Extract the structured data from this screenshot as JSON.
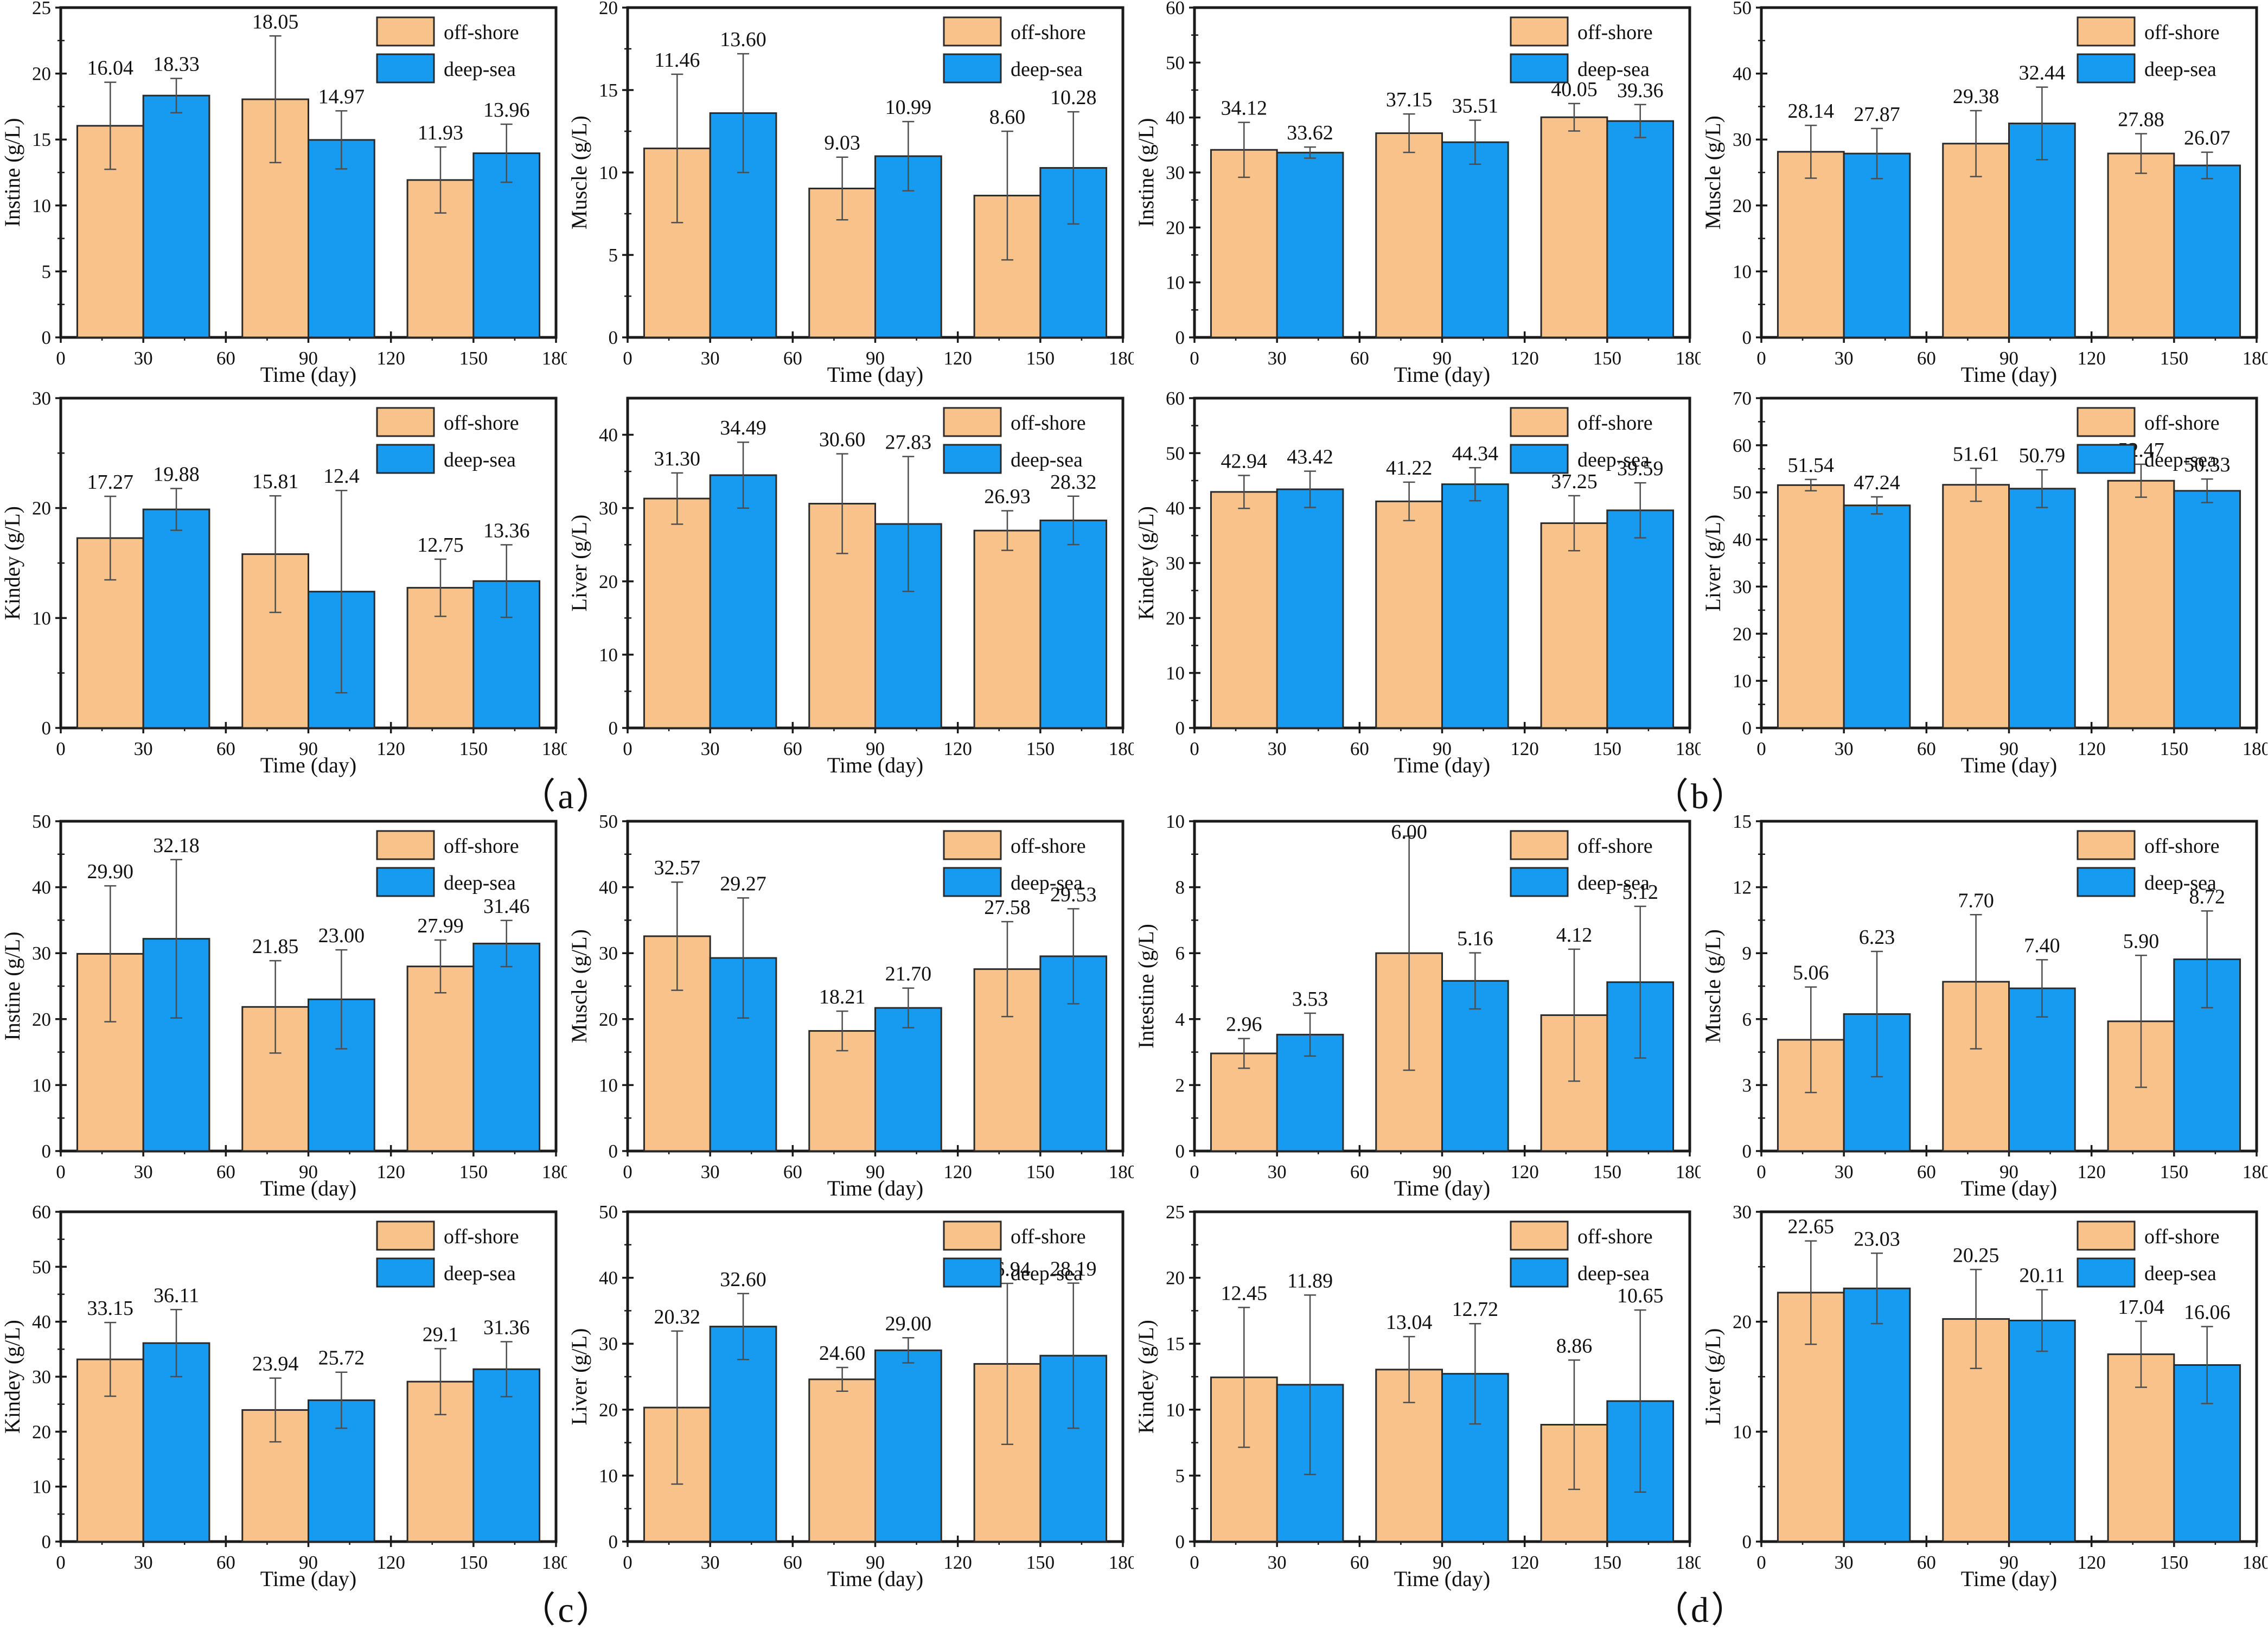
{
  "colors": {
    "offshore_fill": "#F8C38A",
    "deepsea_fill": "#179BF0",
    "bar_edge": "#2a2a2a",
    "error_bar": "#4d4d4d",
    "axis": "#1a1a1a",
    "background": "#ffffff"
  },
  "legend": {
    "offshore": "off-shore",
    "deepsea": "deep-sea"
  },
  "panels": [
    {
      "id": "a",
      "caption": "（a）"
    },
    {
      "id": "b",
      "caption": "（b）"
    },
    {
      "id": "c",
      "caption": "（c）"
    },
    {
      "id": "d",
      "caption": "（d）"
    }
  ],
  "chart_data": [
    {
      "panel": "a",
      "type": "bar",
      "xlabel": "Time (day)",
      "ylabel": "Instine (g/L)",
      "x": [
        30,
        90,
        150
      ],
      "x_ticks": [
        0,
        30,
        60,
        90,
        120,
        150,
        180
      ],
      "ylim": [
        0,
        25
      ],
      "ystep": 5,
      "legend_position": "top-right",
      "grid": false,
      "series": [
        {
          "name": "off-shore",
          "values": [
            16.04,
            18.05,
            11.93
          ],
          "labels": [
            "16.04",
            "18.05",
            "11.93"
          ],
          "errors": [
            3.3,
            4.8,
            2.5
          ]
        },
        {
          "name": "deep-sea",
          "values": [
            18.33,
            14.97,
            13.96
          ],
          "labels": [
            "18.33",
            "14.97",
            "13.96"
          ],
          "errors": [
            1.3,
            2.2,
            2.2
          ]
        }
      ]
    },
    {
      "panel": "a",
      "type": "bar",
      "xlabel": "Time (day)",
      "ylabel": "Muscle (g/L)",
      "x": [
        30,
        90,
        150
      ],
      "x_ticks": [
        0,
        30,
        60,
        90,
        120,
        150,
        180
      ],
      "ylim": [
        0,
        20
      ],
      "ystep": 5,
      "legend_position": "top-right",
      "grid": false,
      "series": [
        {
          "name": "off-shore",
          "values": [
            11.46,
            9.03,
            8.6
          ],
          "labels": [
            "11.46",
            "9.03",
            "8.60"
          ],
          "errors": [
            4.5,
            1.9,
            3.9
          ]
        },
        {
          "name": "deep-sea",
          "values": [
            13.6,
            10.99,
            10.28
          ],
          "labels": [
            "13.60",
            "10.99",
            "10.28"
          ],
          "errors": [
            3.6,
            2.1,
            3.4
          ]
        }
      ]
    },
    {
      "panel": "a",
      "type": "bar",
      "xlabel": "Time (day)",
      "ylabel": "Kindey (g/L)",
      "x": [
        30,
        90,
        150
      ],
      "x_ticks": [
        0,
        30,
        60,
        90,
        120,
        150,
        180
      ],
      "ylim": [
        0,
        30
      ],
      "ystep": 10,
      "legend_position": "top-right",
      "grid": false,
      "series": [
        {
          "name": "off-shore",
          "values": [
            17.27,
            15.81,
            12.75
          ],
          "labels": [
            "17.27",
            "15.81",
            "12.75"
          ],
          "errors": [
            3.8,
            5.3,
            2.6
          ]
        },
        {
          "name": "deep-sea",
          "values": [
            19.88,
            12.4,
            13.36
          ],
          "labels": [
            "19.88",
            "12.4",
            "13.36"
          ],
          "errors": [
            1.9,
            9.2,
            3.3
          ]
        }
      ]
    },
    {
      "panel": "a",
      "type": "bar",
      "xlabel": "Time (day)",
      "ylabel": "Liver (g/L)",
      "x": [
        30,
        90,
        150
      ],
      "x_ticks": [
        0,
        30,
        60,
        90,
        120,
        150,
        180
      ],
      "ylim": [
        0,
        45
      ],
      "ystep": 10,
      "legend_position": "top-right",
      "grid": false,
      "series": [
        {
          "name": "off-shore",
          "values": [
            31.3,
            30.6,
            26.93
          ],
          "labels": [
            "31.30",
            "30.60",
            "26.93"
          ],
          "errors": [
            3.5,
            6.8,
            2.7
          ]
        },
        {
          "name": "deep-sea",
          "values": [
            34.49,
            27.83,
            28.32
          ],
          "labels": [
            "34.49",
            "27.83",
            "28.32"
          ],
          "errors": [
            4.5,
            9.2,
            3.3
          ]
        }
      ]
    },
    {
      "panel": "b",
      "type": "bar",
      "xlabel": "Time (day)",
      "ylabel": "Instine (g/L)",
      "x": [
        30,
        90,
        150
      ],
      "x_ticks": [
        0,
        30,
        60,
        90,
        120,
        150,
        180
      ],
      "ylim": [
        0,
        60
      ],
      "ystep": 10,
      "legend_position": "top-right",
      "grid": false,
      "series": [
        {
          "name": "off-shore",
          "values": [
            34.12,
            37.15,
            40.05
          ],
          "labels": [
            "34.12",
            "37.15",
            "40.05"
          ],
          "errors": [
            5.0,
            3.5,
            2.5
          ]
        },
        {
          "name": "deep-sea",
          "values": [
            33.62,
            35.51,
            39.36
          ],
          "labels": [
            "33.62",
            "35.51",
            "39.36"
          ],
          "errors": [
            1.0,
            4.0,
            3.0
          ]
        }
      ]
    },
    {
      "panel": "b",
      "type": "bar",
      "xlabel": "Time (day)",
      "ylabel": "Muscle (g/L)",
      "x": [
        30,
        90,
        150
      ],
      "x_ticks": [
        0,
        30,
        60,
        90,
        120,
        150,
        180
      ],
      "ylim": [
        0,
        50
      ],
      "ystep": 10,
      "legend_position": "top-right",
      "grid": false,
      "series": [
        {
          "name": "off-shore",
          "values": [
            28.14,
            29.38,
            27.88
          ],
          "labels": [
            "28.14",
            "29.38",
            "27.88"
          ],
          "errors": [
            4.0,
            5.0,
            3.0
          ]
        },
        {
          "name": "deep-sea",
          "values": [
            27.87,
            32.44,
            26.07
          ],
          "labels": [
            "27.87",
            "32.44",
            "26.07"
          ],
          "errors": [
            3.8,
            5.5,
            2.0
          ]
        }
      ]
    },
    {
      "panel": "b",
      "type": "bar",
      "xlabel": "Time (day)",
      "ylabel": "Kindey (g/L)",
      "x": [
        30,
        90,
        150
      ],
      "x_ticks": [
        0,
        30,
        60,
        90,
        120,
        150,
        180
      ],
      "ylim": [
        0,
        60
      ],
      "ystep": 10,
      "legend_position": "top-right",
      "grid": false,
      "series": [
        {
          "name": "off-shore",
          "values": [
            42.94,
            41.22,
            37.25
          ],
          "labels": [
            "42.94",
            "41.22",
            "37.25"
          ],
          "errors": [
            3.0,
            3.5,
            5.0
          ]
        },
        {
          "name": "deep-sea",
          "values": [
            43.42,
            44.34,
            39.59
          ],
          "labels": [
            "43.42",
            "44.34",
            "39.59"
          ],
          "errors": [
            3.3,
            3.0,
            5.0
          ]
        }
      ]
    },
    {
      "panel": "b",
      "type": "bar",
      "xlabel": "Time (day)",
      "ylabel": "Liver (g/L)",
      "x": [
        30,
        90,
        150
      ],
      "x_ticks": [
        0,
        30,
        60,
        90,
        120,
        150,
        180
      ],
      "ylim": [
        0,
        70
      ],
      "ystep": 10,
      "legend_position": "top-right",
      "grid": false,
      "series": [
        {
          "name": "off-shore",
          "values": [
            51.54,
            51.61,
            52.47
          ],
          "labels": [
            "51.54",
            "51.61",
            "52.47"
          ],
          "errors": [
            1.2,
            3.5,
            3.5
          ]
        },
        {
          "name": "deep-sea",
          "values": [
            47.24,
            50.79,
            50.33
          ],
          "labels": [
            "47.24",
            "50.79",
            "50.33"
          ],
          "errors": [
            1.8,
            4.0,
            2.5
          ]
        }
      ]
    },
    {
      "panel": "c",
      "type": "bar",
      "xlabel": "Time (day)",
      "ylabel": "Instine (g/L)",
      "x": [
        30,
        90,
        150
      ],
      "x_ticks": [
        0,
        30,
        60,
        90,
        120,
        150,
        180
      ],
      "ylim": [
        0,
        50
      ],
      "ystep": 10,
      "legend_position": "top-right",
      "grid": false,
      "series": [
        {
          "name": "off-shore",
          "values": [
            29.9,
            21.85,
            27.99
          ],
          "labels": [
            "29.90",
            "21.85",
            "27.99"
          ],
          "errors": [
            10.3,
            7.0,
            4.0
          ]
        },
        {
          "name": "deep-sea",
          "values": [
            32.18,
            23.0,
            31.46
          ],
          "labels": [
            "32.18",
            "23.00",
            "31.46"
          ],
          "errors": [
            12.0,
            7.5,
            3.5
          ]
        }
      ]
    },
    {
      "panel": "c",
      "type": "bar",
      "xlabel": "Time (day)",
      "ylabel": "Muscle (g/L)",
      "x": [
        30,
        90,
        150
      ],
      "x_ticks": [
        0,
        30,
        60,
        90,
        120,
        150,
        180
      ],
      "ylim": [
        0,
        50
      ],
      "ystep": 10,
      "legend_position": "top-right",
      "grid": false,
      "series": [
        {
          "name": "off-shore",
          "values": [
            32.57,
            18.21,
            27.58
          ],
          "labels": [
            "32.57",
            "18.21",
            "27.58"
          ],
          "errors": [
            8.2,
            3.0,
            7.2
          ]
        },
        {
          "name": "deep-sea",
          "values": [
            29.27,
            21.7,
            29.53
          ],
          "labels": [
            "29.27",
            "21.70",
            "29.53"
          ],
          "errors": [
            9.1,
            3.0,
            7.2
          ]
        }
      ]
    },
    {
      "panel": "c",
      "type": "bar",
      "xlabel": "Time (day)",
      "ylabel": "Kindey (g/L)",
      "x": [
        30,
        90,
        150
      ],
      "x_ticks": [
        0,
        30,
        60,
        90,
        120,
        150,
        180
      ],
      "ylim": [
        0,
        60
      ],
      "ystep": 10,
      "legend_position": "top-right",
      "grid": false,
      "series": [
        {
          "name": "off-shore",
          "values": [
            33.15,
            23.94,
            29.1
          ],
          "labels": [
            "33.15",
            "23.94",
            "29.1"
          ],
          "errors": [
            6.7,
            5.8,
            6.0
          ]
        },
        {
          "name": "deep-sea",
          "values": [
            36.11,
            25.72,
            31.36
          ],
          "labels": [
            "36.11",
            "25.72",
            "31.36"
          ],
          "errors": [
            6.1,
            5.1,
            5.0
          ]
        }
      ]
    },
    {
      "panel": "c",
      "type": "bar",
      "xlabel": "Time (day)",
      "ylabel": "Liver (g/L)",
      "x": [
        30,
        90,
        150
      ],
      "x_ticks": [
        0,
        30,
        60,
        90,
        120,
        150,
        180
      ],
      "ylim": [
        0,
        50
      ],
      "ystep": 10,
      "legend_position": "top-right",
      "grid": false,
      "series": [
        {
          "name": "off-shore",
          "values": [
            20.32,
            24.6,
            26.94
          ],
          "labels": [
            "20.32",
            "24.60",
            "26.94"
          ],
          "errors": [
            11.6,
            1.8,
            12.2
          ]
        },
        {
          "name": "deep-sea",
          "values": [
            32.6,
            29.0,
            28.19
          ],
          "labels": [
            "32.60",
            "29.00",
            "28.19"
          ],
          "errors": [
            5.0,
            1.9,
            11.0
          ]
        }
      ]
    },
    {
      "panel": "d",
      "type": "bar",
      "xlabel": "Time (day)",
      "ylabel": "Intestine (g/L)",
      "x": [
        30,
        90,
        150
      ],
      "x_ticks": [
        0,
        30,
        60,
        90,
        120,
        150,
        180
      ],
      "ylim": [
        0,
        10
      ],
      "ystep": 2,
      "legend_position": "top-right",
      "grid": false,
      "series": [
        {
          "name": "off-shore",
          "values": [
            2.96,
            6.0,
            4.12
          ],
          "labels": [
            "2.96",
            "6.00",
            "4.12"
          ],
          "errors": [
            0.45,
            3.55,
            2.0
          ]
        },
        {
          "name": "deep-sea",
          "values": [
            3.53,
            5.16,
            5.12
          ],
          "labels": [
            "3.53",
            "5.16",
            "5.12"
          ],
          "errors": [
            0.65,
            0.85,
            2.3
          ]
        }
      ]
    },
    {
      "panel": "d",
      "type": "bar",
      "xlabel": "Time (day)",
      "ylabel": "Muscle (g/L)",
      "x": [
        30,
        90,
        150
      ],
      "x_ticks": [
        0,
        30,
        60,
        90,
        120,
        150,
        180
      ],
      "ylim": [
        0,
        15
      ],
      "ystep": 3,
      "legend_position": "top-right",
      "grid": false,
      "series": [
        {
          "name": "off-shore",
          "values": [
            5.06,
            7.7,
            5.9
          ],
          "labels": [
            "5.06",
            "7.70",
            "5.90"
          ],
          "errors": [
            2.4,
            3.05,
            3.0
          ]
        },
        {
          "name": "deep-sea",
          "values": [
            6.23,
            7.4,
            8.72
          ],
          "labels": [
            "6.23",
            "7.40",
            "8.72"
          ],
          "errors": [
            2.85,
            1.3,
            2.2
          ]
        }
      ]
    },
    {
      "panel": "d",
      "type": "bar",
      "xlabel": "Time (day)",
      "ylabel": "Kindey (g/L)",
      "x": [
        30,
        90,
        150
      ],
      "x_ticks": [
        0,
        30,
        60,
        90,
        120,
        150,
        180
      ],
      "ylim": [
        0,
        25
      ],
      "ystep": 5,
      "legend_position": "top-right",
      "grid": false,
      "series": [
        {
          "name": "off-shore",
          "values": [
            12.45,
            13.04,
            8.86
          ],
          "labels": [
            "12.45",
            "13.04",
            "8.86"
          ],
          "errors": [
            5.3,
            2.5,
            4.9
          ]
        },
        {
          "name": "deep-sea",
          "values": [
            11.89,
            12.72,
            10.65
          ],
          "labels": [
            "11.89",
            "12.72",
            "10.65"
          ],
          "errors": [
            6.8,
            3.8,
            6.9
          ]
        }
      ]
    },
    {
      "panel": "d",
      "type": "bar",
      "xlabel": "Time (day)",
      "ylabel": "Liver (g/L)",
      "x": [
        30,
        90,
        150
      ],
      "x_ticks": [
        0,
        30,
        60,
        90,
        120,
        150,
        180
      ],
      "ylim": [
        0,
        30
      ],
      "ystep": 10,
      "legend_position": "top-right",
      "grid": false,
      "series": [
        {
          "name": "off-shore",
          "values": [
            22.65,
            20.25,
            17.04
          ],
          "labels": [
            "22.65",
            "20.25",
            "17.04"
          ],
          "errors": [
            4.7,
            4.5,
            3.0
          ]
        },
        {
          "name": "deep-sea",
          "values": [
            23.03,
            20.11,
            16.06
          ],
          "labels": [
            "23.03",
            "20.11",
            "16.06"
          ],
          "errors": [
            3.2,
            2.8,
            3.5
          ]
        }
      ]
    }
  ]
}
